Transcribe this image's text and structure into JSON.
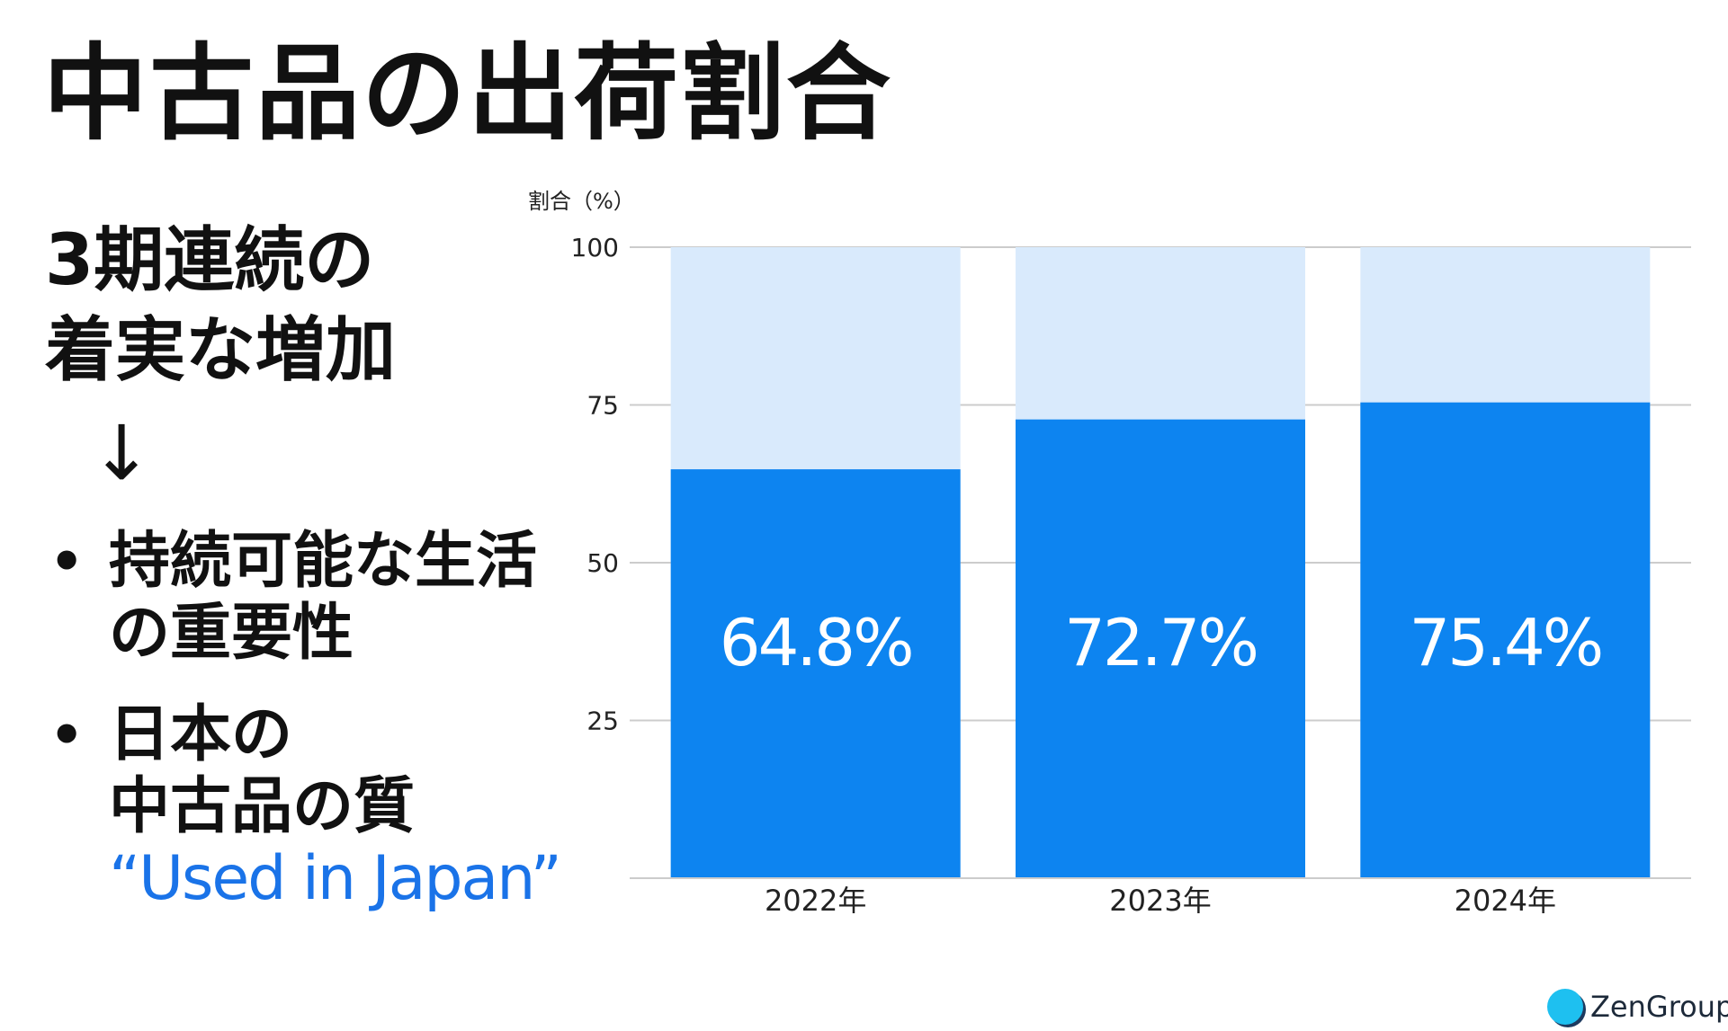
{
  "title": "中古品の出荷割合",
  "headline": [
    "3期連続の",
    "着実な増加"
  ],
  "arrow": "↓",
  "bullets": [
    {
      "lines": [
        "持続可能な生活",
        "の重要性"
      ]
    },
    {
      "lines": [
        "日本の",
        "中古品の質"
      ],
      "accent": "“Used in Japan”"
    }
  ],
  "bullet_symbol": "•",
  "colors": {
    "bar": "#0d84f0",
    "bar_bg": "#d9eafc",
    "accent": "#1a73e8",
    "grid": "#cccccc"
  },
  "logo": {
    "text": "ZenGroup",
    "icon": "zengroup-logo-icon"
  },
  "chart_data": {
    "type": "bar",
    "title": "",
    "ylabel": "割合（%）",
    "xlabel": "",
    "categories": [
      "2022年",
      "2023年",
      "2024年"
    ],
    "values": [
      64.8,
      72.7,
      75.4
    ],
    "data_labels": [
      "64.8%",
      "72.7%",
      "75.4%"
    ],
    "ylim": [
      0,
      100
    ],
    "yticks": [
      25,
      50,
      75,
      100
    ],
    "grid": true,
    "background_series_value": 100
  }
}
